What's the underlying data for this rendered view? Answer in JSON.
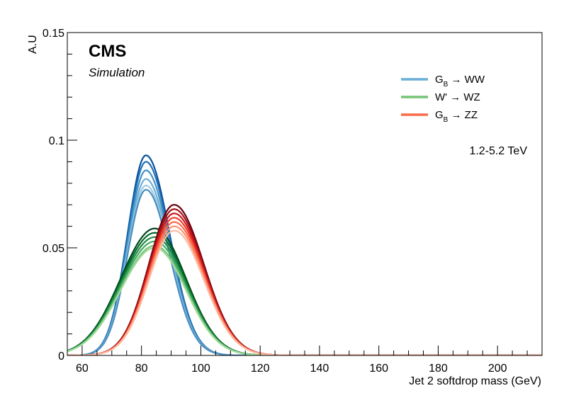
{
  "chart_data": {
    "type": "line",
    "experiment_label": "CMS",
    "sublabel": "Simulation",
    "energy_label": "1.2-5.2 TeV",
    "xlabel": "Jet 2 softdrop mass (GeV)",
    "ylabel": "A.U",
    "xlim": [
      55,
      215
    ],
    "ylim": [
      0,
      0.15
    ],
    "xticks": [
      60,
      80,
      100,
      120,
      140,
      160,
      180,
      200
    ],
    "yticks": [
      0,
      0.05,
      0.1,
      0.15
    ],
    "ytick_labels": [
      "0",
      "0.05",
      "0.1",
      "0.15"
    ],
    "grid": false,
    "legend_position": "top-right",
    "legend": [
      {
        "label": "G_B → WW",
        "main": "G",
        "sub": "B",
        "rest": " → WW",
        "color": "#6aaed6"
      },
      {
        "label": "W' → WZ",
        "main": "W'",
        "sub": "",
        "rest": " → WZ",
        "color": "#73c476"
      },
      {
        "label": "G_B → ZZ",
        "main": "G",
        "sub": "B",
        "rest": " → ZZ",
        "color": "#fb6a4a"
      }
    ],
    "series": [
      {
        "name": "G_B → WW",
        "model": "double_gaussian",
        "mu": 81.5,
        "sigma_left": 6.2,
        "sigma_right": 8.0,
        "base": 0.0,
        "peaks": [
          0.093,
          0.09,
          0.086,
          0.082,
          0.079,
          0.077
        ],
        "colors": [
          "#08519c",
          "#2171b5",
          "#4292c6",
          "#6baed6",
          "#9ecae1",
          "#4a8fc0"
        ]
      },
      {
        "name": "W' → WZ",
        "model": "double_gaussian",
        "mu": 84.5,
        "sigma_left": 11.5,
        "sigma_right": 10.5,
        "base": 0.0,
        "peaks": [
          0.059,
          0.057,
          0.055,
          0.053,
          0.051,
          0.05
        ],
        "colors": [
          "#00441b",
          "#006d2c",
          "#238b45",
          "#41ab5d",
          "#74c476",
          "#a1d99b"
        ]
      },
      {
        "name": "G_B → ZZ",
        "model": "double_gaussian",
        "mu": 91.0,
        "sigma_left": 8.5,
        "sigma_right": 10.0,
        "base": 0.0,
        "peaks": [
          0.07,
          0.068,
          0.066,
          0.064,
          0.062,
          0.06,
          0.058
        ],
        "colors": [
          "#67000d",
          "#a50f15",
          "#cb181d",
          "#ef3b2c",
          "#fb6a4a",
          "#fc9272",
          "#fcbba1"
        ]
      }
    ]
  }
}
